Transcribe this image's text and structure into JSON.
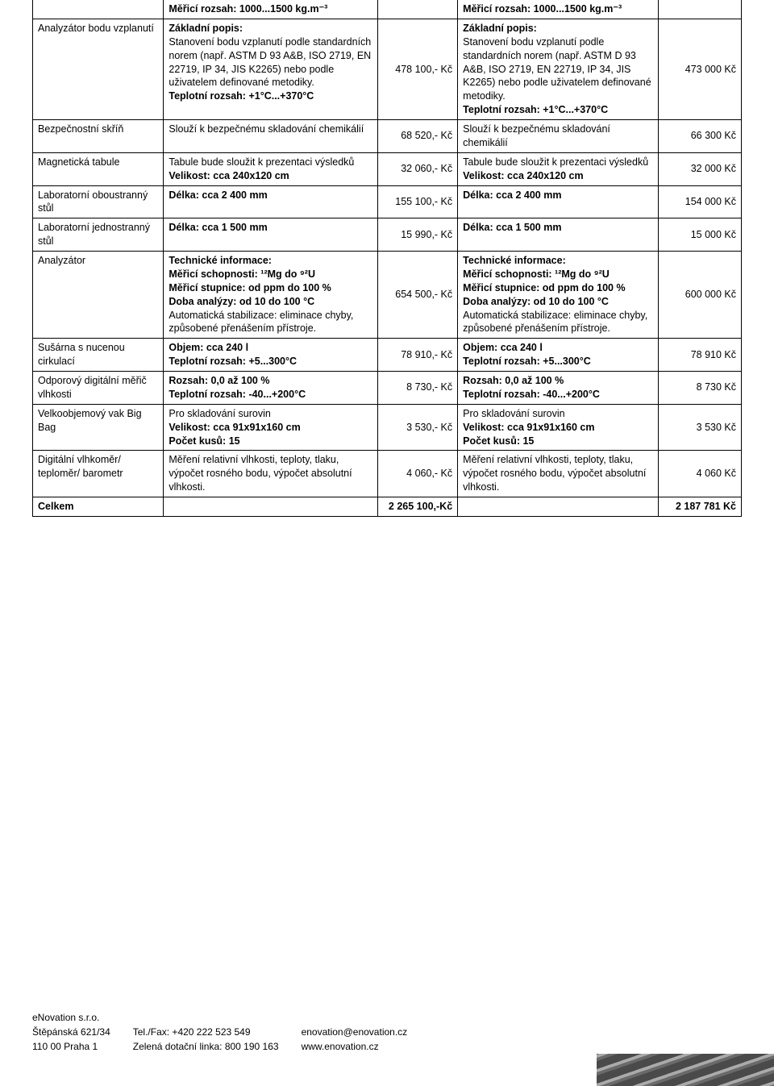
{
  "table": {
    "rows": [
      {
        "name": "",
        "desc1": [
          {
            "b": true,
            "t": "Měřicí rozsah: 1000...1500 kg.m⁻³"
          }
        ],
        "price1": "",
        "desc2": [
          {
            "b": true,
            "t": "Měřicí rozsah: 1000...1500 kg.m⁻³"
          }
        ],
        "price2": ""
      },
      {
        "name": "Analyzátor bodu vzplanutí",
        "desc1": [
          {
            "b": true,
            "t": "Základní popis:"
          },
          {
            "b": false,
            "t": "Stanovení bodu vzplanutí podle standardních norem (např. ASTM D 93 A&B, ISO 2719, EN 22719, IP 34, JIS K2265) nebo podle uživatelem definované metodiky."
          },
          {
            "b": true,
            "t": "Teplotní rozsah: +1°C...+370°C"
          }
        ],
        "price1": "478 100,- Kč",
        "desc2": [
          {
            "b": true,
            "t": "Základní popis:"
          },
          {
            "b": false,
            "t": "Stanovení bodu vzplanutí podle standardních norem (např. ASTM D 93 A&B, ISO 2719, EN 22719, IP 34, JIS K2265) nebo podle uživatelem definované metodiky."
          },
          {
            "b": true,
            "t": "Teplotní rozsah: +1°C...+370°C"
          }
        ],
        "price2": "473 000 Kč"
      },
      {
        "name": "Bezpečnostní skříň",
        "desc1": [
          {
            "b": false,
            "t": "Slouží k bezpečnému skladování chemikálií"
          }
        ],
        "price1": "68 520,- Kč",
        "desc2": [
          {
            "b": false,
            "t": "Slouží k bezpečnému skladování chemikálií"
          }
        ],
        "price2": "66 300 Kč"
      },
      {
        "name": "Magnetická tabule",
        "desc1": [
          {
            "b": false,
            "t": "Tabule bude sloužit k prezentaci výsledků"
          },
          {
            "b": true,
            "t": "Velikost: cca 240x120 cm"
          }
        ],
        "price1": "32 060,- Kč",
        "desc2": [
          {
            "b": false,
            "t": "Tabule bude sloužit k prezentaci výsledků"
          },
          {
            "b": true,
            "t": "Velikost: cca 240x120 cm"
          }
        ],
        "price2": "32 000 Kč"
      },
      {
        "name": "Laboratorní oboustranný stůl",
        "desc1": [
          {
            "b": true,
            "t": "Délka: cca 2 400 mm"
          }
        ],
        "price1": "155 100,- Kč",
        "desc2": [
          {
            "b": true,
            "t": "Délka: cca 2 400 mm"
          }
        ],
        "price2": "154 000 Kč"
      },
      {
        "name": "Laboratorní jednostranný stůl",
        "desc1": [
          {
            "b": true,
            "t": "Délka: cca 1 500 mm"
          }
        ],
        "price1": "15 990,- Kč",
        "desc2": [
          {
            "b": true,
            "t": "Délka: cca 1 500 mm"
          }
        ],
        "price2": "15 000 Kč"
      },
      {
        "name": "Analyzátor",
        "desc1": [
          {
            "b": true,
            "t": "Technické informace:"
          },
          {
            "b": true,
            "t": "Měřicí schopnosti: ¹²Mg do ⁹²U"
          },
          {
            "b": true,
            "t": "Měřicí stupnice: od ppm do 100 %"
          },
          {
            "b": true,
            "t": "Doba analýzy: od 10 do 100 °C"
          },
          {
            "b": false,
            "t": "Automatická stabilizace: eliminace chyby, způsobené přenášením přístroje."
          }
        ],
        "price1": "654 500,- Kč",
        "desc2": [
          {
            "b": true,
            "t": "Technické informace:"
          },
          {
            "b": true,
            "t": "Měřicí schopnosti: ¹²Mg do ⁹²U"
          },
          {
            "b": true,
            "t": "Měřicí stupnice: od ppm do 100 %"
          },
          {
            "b": true,
            "t": "Doba analýzy: od 10 do 100 °C"
          },
          {
            "b": false,
            "t": "Automatická stabilizace: eliminace chyby, způsobené přenášením přístroje."
          }
        ],
        "price2": "600 000 Kč"
      },
      {
        "name": "Sušárna s nucenou cirkulací",
        "desc1": [
          {
            "b": true,
            "t": "Objem: cca 240 l"
          },
          {
            "b": true,
            "t": "Teplotní rozsah: +5...300°C"
          }
        ],
        "price1": "78 910,- Kč",
        "desc2": [
          {
            "b": true,
            "t": "Objem: cca 240 l"
          },
          {
            "b": true,
            "t": "Teplotní rozsah: +5...300°C"
          }
        ],
        "price2": "78 910 Kč"
      },
      {
        "name": "Odporový digitální měřič vlhkosti",
        "desc1": [
          {
            "b": true,
            "t": "Rozsah: 0,0 až 100 %"
          },
          {
            "b": true,
            "t": "Teplotní rozsah: -40...+200°C"
          }
        ],
        "price1": "8 730,- Kč",
        "desc2": [
          {
            "b": true,
            "t": "Rozsah: 0,0 až 100 %"
          },
          {
            "b": true,
            "t": "Teplotní rozsah: -40...+200°C"
          }
        ],
        "price2": "8 730 Kč"
      },
      {
        "name": "Velkoobjemový vak Big Bag",
        "desc1": [
          {
            "b": false,
            "t": "Pro skladování surovin"
          },
          {
            "b": true,
            "t": "Velikost: cca 91x91x160 cm"
          },
          {
            "b": true,
            "t": "Počet kusů: 15"
          }
        ],
        "price1": "3 530,- Kč",
        "desc2": [
          {
            "b": false,
            "t": "Pro skladování surovin"
          },
          {
            "b": true,
            "t": "Velikost: cca 91x91x160 cm"
          },
          {
            "b": true,
            "t": "Počet kusů: 15"
          }
        ],
        "price2": "3 530 Kč"
      },
      {
        "name": "Digitální vlhkoměr/ teploměr/ barometr",
        "desc1": [
          {
            "b": false,
            "t": "Měření relativní vlhkosti, teploty, tlaku, výpočet rosného bodu, výpočet absolutní vlhkosti."
          }
        ],
        "price1": "4 060,- Kč",
        "desc2": [
          {
            "b": false,
            "t": "Měření relativní vlhkosti, teploty, tlaku, výpočet rosného bodu, výpočet absolutní vlhkosti."
          }
        ],
        "price2": "4 060 Kč"
      },
      {
        "name_b": true,
        "name": "Celkem",
        "desc1": [],
        "price1": "2 265 100,-Kč",
        "price1_b": true,
        "desc2": [],
        "price2": "2 187 781 Kč",
        "price2_b": true
      }
    ]
  },
  "footer": {
    "company": "eNovation s.r.o.",
    "addr1": "Štěpánská 621/34",
    "addr2": "110 00 Praha 1",
    "tel": "Tel./Fax: +420 222 523 549",
    "line": "Zelená dotační linka: 800 190 163",
    "email": "enovation@enovation.cz",
    "web": "www.enovation.cz"
  }
}
